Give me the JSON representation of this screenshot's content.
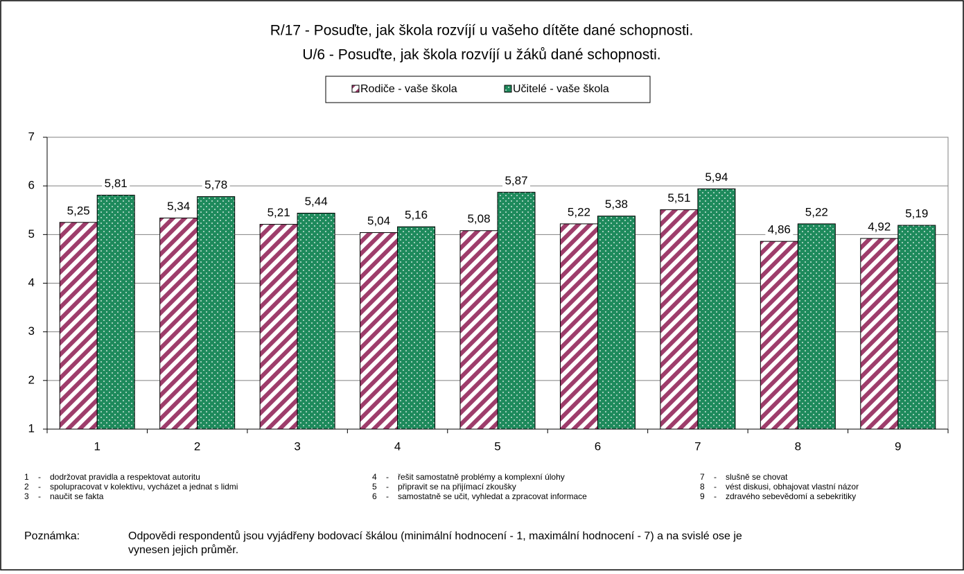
{
  "chart_data": {
    "type": "bar",
    "title": [
      "R/17 - Posuďte, jak škola rozvíjí u vašeho dítěte dané schopnosti.",
      "U/6 - Posuďte, jak škola rozvíjí u žáků dané schopnosti."
    ],
    "categories": [
      "1",
      "2",
      "3",
      "4",
      "5",
      "6",
      "7",
      "8",
      "9"
    ],
    "series": [
      {
        "name": "Rodiče - vaše škola",
        "color": "#9e3d6b",
        "values": [
          5.25,
          5.34,
          5.21,
          5.04,
          5.08,
          5.22,
          5.51,
          4.86,
          4.92
        ],
        "value_labels": [
          "5,25",
          "5,34",
          "5,21",
          "5,04",
          "5,08",
          "5,22",
          "5,51",
          "4,86",
          "4,92"
        ]
      },
      {
        "name": "Učitelé - vaše škola",
        "color": "#1e8a5c",
        "values": [
          5.81,
          5.78,
          5.44,
          5.16,
          5.87,
          5.38,
          5.94,
          5.22,
          5.19
        ],
        "value_labels": [
          "5,81",
          "5,78",
          "5,44",
          "5,16",
          "5,87",
          "5,38",
          "5,94",
          "5,22",
          "5,19"
        ]
      }
    ],
    "ylim": [
      1,
      7
    ],
    "yticks": [
      1,
      2,
      3,
      4,
      5,
      6,
      7
    ],
    "grid": true,
    "key_separator": "-",
    "key": [
      {
        "label": "1",
        "text": "dodržovat pravidla a respektovat autoritu"
      },
      {
        "label": "2",
        "text": "spolupracovat v kolektivu, vycházet a jednat s lidmi"
      },
      {
        "label": "3",
        "text": "naučit se fakta"
      },
      {
        "label": "4",
        "text": "řešit samostatně problémy a komplexní úlohy"
      },
      {
        "label": "5",
        "text": "připravit se na přijímací zkoušky"
      },
      {
        "label": "6",
        "text": "samostatně se učit, vyhledat a zpracovat informace"
      },
      {
        "label": "7",
        "text": "slušně se chovat"
      },
      {
        "label": "8",
        "text": "vést diskusi, obhajovat vlastní názor"
      },
      {
        "label": "9",
        "text": "zdravého sebevědomí a sebekritiky"
      }
    ],
    "note_label": "Poznámka:",
    "note": [
      "Odpovědi respondentů jsou vyjádřeny bodovací škálou (minimální hodnocení - 1, maximální hodnocení - 7) a na svislé ose je",
      "vynesen jejich průměr."
    ]
  }
}
